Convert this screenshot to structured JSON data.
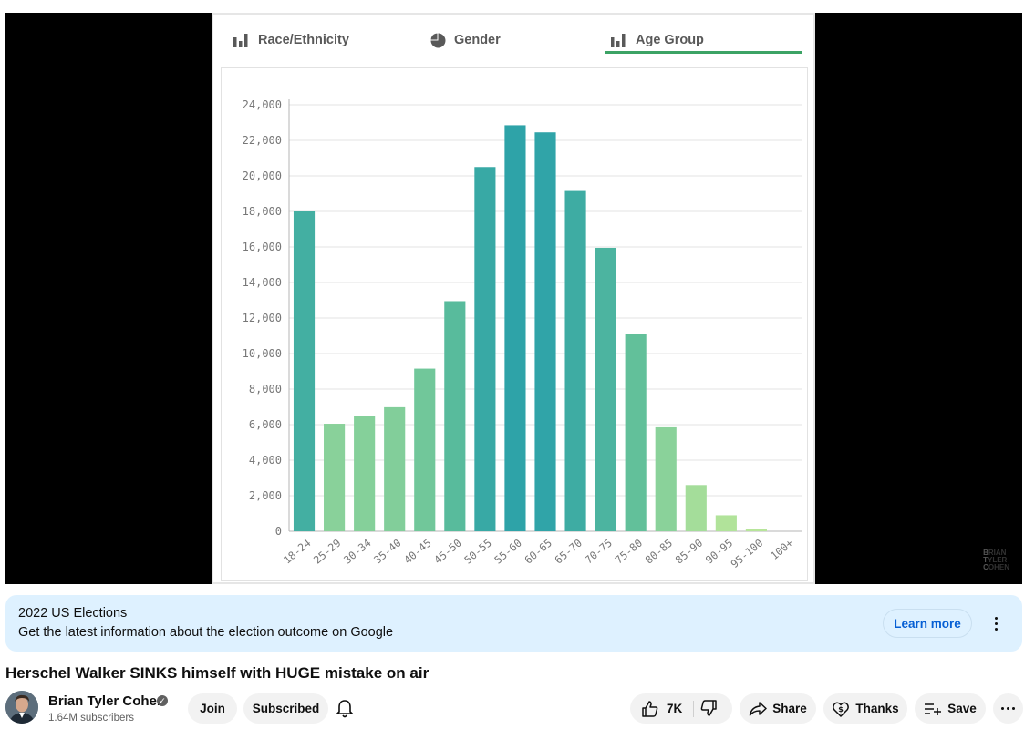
{
  "video": {
    "tabs": [
      {
        "label": "Race/Ethnicity",
        "icon": "bar-chart-icon"
      },
      {
        "label": "Gender",
        "icon": "pie-chart-icon"
      },
      {
        "label": "Age Group",
        "icon": "bar-chart-icon",
        "selected": true
      }
    ],
    "watermark": [
      "B",
      "T",
      "C"
    ],
    "watermark_rest": [
      "RIAN",
      "YLER",
      "OHEN"
    ]
  },
  "chart_data": {
    "type": "bar",
    "categories": [
      "18-24",
      "25-29",
      "30-34",
      "35-40",
      "40-45",
      "45-50",
      "50-55",
      "55-60",
      "60-65",
      "65-70",
      "70-75",
      "75-80",
      "80-85",
      "85-90",
      "90-95",
      "95-100",
      "100+"
    ],
    "values": [
      18000,
      6050,
      6500,
      6980,
      9150,
      12950,
      20500,
      22850,
      22450,
      19150,
      15950,
      11100,
      5850,
      2600,
      900,
      150,
      0
    ],
    "yticks": [
      "0",
      "2,000",
      "4,000",
      "6,000",
      "8,000",
      "10,000",
      "12,000",
      "14,000",
      "16,000",
      "18,000",
      "20,000",
      "22,000",
      "24,000"
    ],
    "ylim": [
      0,
      24000
    ],
    "title": "",
    "xlabel": "",
    "ylabel": "",
    "colors": {
      "low": "#b8e69a",
      "mid": "#5fbf9a",
      "high": "#2ea3a8"
    }
  },
  "banner": {
    "title": "2022 US Elections",
    "subtitle": "Get the latest information about the election outcome on Google",
    "button": "Learn more"
  },
  "title": "Herschel Walker SINKS himself with HUGE mistake on air",
  "channel": {
    "name": "Brian Tyler Cohen",
    "subscribers": "1.64M subscribers",
    "join": "Join",
    "subscribed": "Subscribed"
  },
  "actions": {
    "likes": "7K",
    "share": "Share",
    "thanks": "Thanks",
    "save": "Save"
  }
}
